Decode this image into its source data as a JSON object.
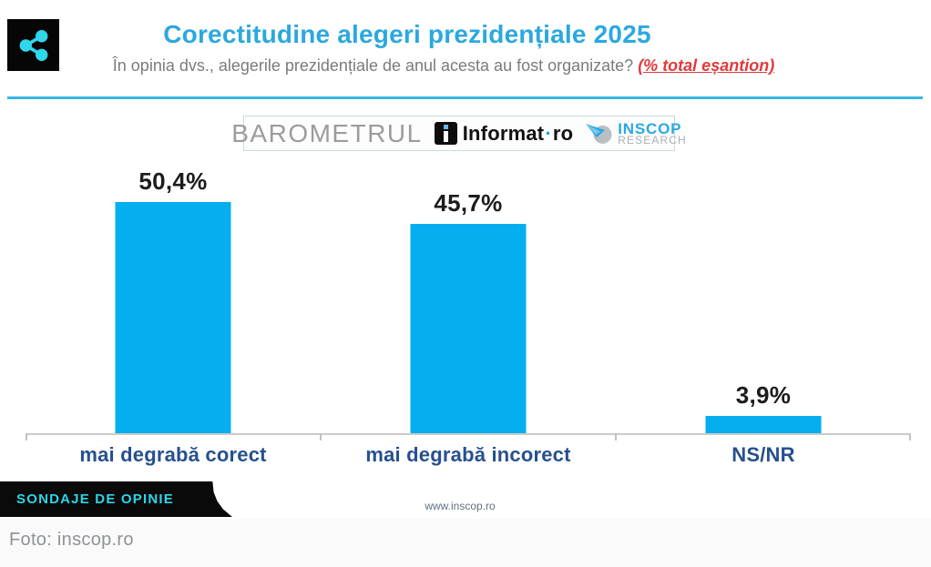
{
  "header": {
    "title": "Corectitudine alegeri prezidențiale 2025",
    "subtitle": "În opinia dvs., alegerile prezidențiale de anul acesta au fost organizate?",
    "subtitle_highlight": "(% total eșantion)"
  },
  "branding": {
    "barometrul": "BAROMETRUL",
    "informat_name": "Informat",
    "informat_sep": "·",
    "informat_tld": "ro",
    "inscop_name": "INSCOP",
    "inscop_sub": "RESEARCH"
  },
  "chart_data": {
    "type": "bar",
    "title": "Corectitudine alegeri prezidențiale 2025",
    "question": "În opinia dvs., alegerile prezidențiale de anul acesta au fost organizate? (% total eșantion)",
    "categories": [
      "mai degrabă corect",
      "mai degrabă incorect",
      "NS/NR"
    ],
    "values": [
      50.4,
      45.7,
      3.9
    ],
    "value_labels": [
      "50,4%",
      "45,7%",
      "3,9%"
    ],
    "unit": "%",
    "ylim": [
      0,
      55
    ],
    "grid": false,
    "legend": false,
    "bar_color": "#05aeef",
    "source": "www.inscop.ro"
  },
  "footer": {
    "website": "www.inscop.ro",
    "badge": "SONDAJE DE OPINIE",
    "photo_credit": "Foto: inscop.ro"
  },
  "colors": {
    "bar": "#05aeef",
    "title": "#2ba8e0",
    "divider": "#39b4e4",
    "category_label": "#26508f",
    "highlight_red": "#e03a3c",
    "badge_text": "#2bd6e9",
    "badge_bg": "#0a0a0a",
    "share_icon": "#2ed7ec"
  }
}
